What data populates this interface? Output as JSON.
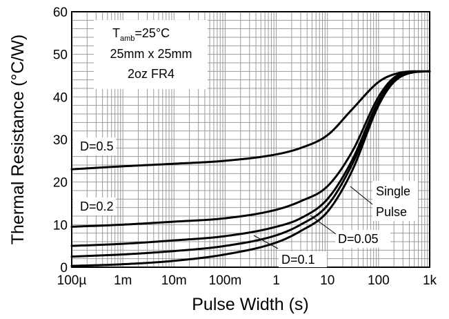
{
  "chart_data": {
    "type": "line",
    "xlabel": "Pulse Width (s)",
    "ylabel": "Thermal Resistance (°C/W)",
    "x_scale": "log",
    "xlim": [
      0.0001,
      1000
    ],
    "ylim": [
      0,
      60
    ],
    "x_ticks": [
      {
        "value": 0.0001,
        "label": "100µ"
      },
      {
        "value": 0.001,
        "label": "1m"
      },
      {
        "value": 0.01,
        "label": "10m"
      },
      {
        "value": 0.1,
        "label": "100m"
      },
      {
        "value": 1,
        "label": "1"
      },
      {
        "value": 10,
        "label": "10"
      },
      {
        "value": 100,
        "label": "100"
      },
      {
        "value": 1000,
        "label": "1k"
      }
    ],
    "y_ticks": [
      0,
      10,
      20,
      30,
      40,
      50,
      60
    ],
    "grid": true,
    "conditions": {
      "line1_main": "T",
      "line1_sub": "amb",
      "line1_rest": "=25°C",
      "line2": "25mm x 25mm",
      "line3": "2oz FR4"
    },
    "series": [
      {
        "name": "D=0.5",
        "x": [
          0.0001,
          0.001,
          0.01,
          0.1,
          1,
          3,
          10,
          30,
          100,
          200,
          500,
          1000
        ],
        "y": [
          23,
          23.7,
          24.3,
          25,
          26.5,
          28,
          31,
          37,
          43.5,
          45.3,
          46,
          46
        ]
      },
      {
        "name": "D=0.2",
        "x": [
          0.0001,
          0.001,
          0.01,
          0.1,
          1,
          3,
          10,
          30,
          100,
          200,
          500,
          1000
        ],
        "y": [
          9.5,
          10,
          10.7,
          11.5,
          13.5,
          15.5,
          19,
          27,
          40,
          44.5,
          46,
          46
        ]
      },
      {
        "name": "D=0.1",
        "x": [
          0.0001,
          0.001,
          0.01,
          0.1,
          1,
          3,
          10,
          30,
          100,
          200,
          500,
          1000
        ],
        "y": [
          5,
          5.5,
          6.3,
          7.3,
          9.5,
          11.5,
          16,
          25,
          39,
          44,
          45.8,
          46
        ]
      },
      {
        "name": "D=0.05",
        "x": [
          0.0001,
          0.001,
          0.01,
          0.1,
          1,
          3,
          10,
          30,
          100,
          200,
          500,
          1000
        ],
        "y": [
          2.5,
          3,
          3.8,
          5,
          7.5,
          10,
          14.5,
          24,
          38.5,
          43.8,
          45.8,
          46
        ]
      },
      {
        "name": "Single Pulse",
        "x": [
          0.0001,
          0.001,
          0.01,
          0.1,
          1,
          3,
          10,
          30,
          100,
          200,
          500,
          1000
        ],
        "y": [
          0.3,
          0.7,
          1.5,
          3,
          5.8,
          8.5,
          13,
          22.5,
          38,
          43.5,
          45.8,
          46
        ]
      }
    ],
    "curve_labels": [
      {
        "text": "D=0.5",
        "series": "D=0.5"
      },
      {
        "text": "D=0.2",
        "series": "D=0.2"
      },
      {
        "text": "D=0.1",
        "series": "D=0.1"
      },
      {
        "text": "D=0.05",
        "series": "D=0.05"
      },
      {
        "text": "Single",
        "series": "Single Pulse"
      },
      {
        "text": "Pulse",
        "series": "Single Pulse"
      }
    ]
  }
}
